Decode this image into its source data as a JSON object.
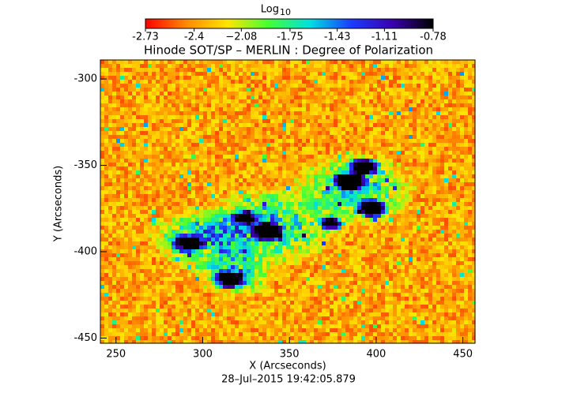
{
  "chart_data": {
    "type": "heatmap",
    "title": "Hinode SOT/SP – MERLIN : Degree of Polarization",
    "x_label": "X (Arcseconds)",
    "y_label": "Y (Arcseconds)",
    "footer": "28–Jul–2015  19:42:05.879",
    "xlim": [
      241,
      457
    ],
    "xticks": [
      250,
      300,
      350,
      400,
      450
    ],
    "ylim": [
      -453,
      -289
    ],
    "yticks": [
      -450,
      -400,
      -350,
      -300
    ],
    "colorbar_label": "Log",
    "colorbar_label_sub": "10",
    "colorbar_lim": [
      -2.73,
      -0.78
    ],
    "colorbar_ticks": [
      -2.73,
      -2.4,
      {
        "value": -2.08,
        "label": "−2.08"
      },
      -1.75,
      -1.43,
      -1.11,
      -0.78
    ],
    "colormap": [
      "#ff0000",
      "#ff8a00",
      "#ffe600",
      "#44ff33",
      "#00e0e0",
      "#1a3cff",
      "#3a00b0",
      "#000000"
    ]
  }
}
